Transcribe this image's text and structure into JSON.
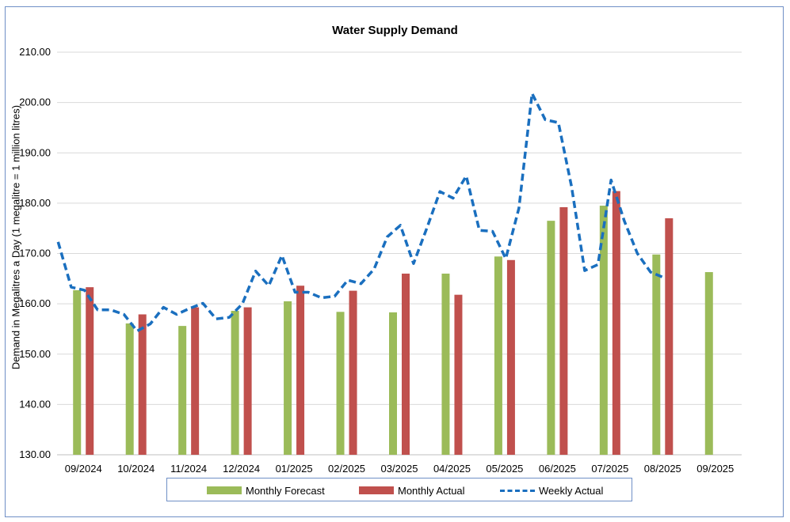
{
  "chart_data": {
    "type": "bar",
    "title": "Water Supply Demand",
    "ylabel": "Demand in Megalitres a Day (1 megalitre = 1 million litres)",
    "xlabel": "",
    "ylim": [
      130,
      210
    ],
    "yticks": [
      130,
      140,
      150,
      160,
      170,
      180,
      190,
      200,
      210
    ],
    "ytick_labels": [
      "130.00",
      "140.00",
      "150.00",
      "160.00",
      "170.00",
      "180.00",
      "190.00",
      "200.00",
      "210.00"
    ],
    "categories": [
      "09/2024",
      "10/2024",
      "11/2024",
      "12/2024",
      "01/2025",
      "02/2025",
      "03/2025",
      "04/2025",
      "05/2025",
      "06/2025",
      "07/2025",
      "08/2025",
      "09/2025"
    ],
    "series": [
      {
        "name": "Monthly Forecast",
        "type": "bar",
        "color": "#9bbb59",
        "values": [
          162.7,
          156.1,
          155.6,
          158.6,
          160.5,
          158.4,
          158.3,
          166.0,
          169.4,
          176.5,
          179.5,
          169.8,
          166.3
        ]
      },
      {
        "name": "Monthly Actual",
        "type": "bar",
        "color": "#c0504d",
        "values": [
          163.3,
          157.9,
          159.3,
          159.3,
          163.6,
          162.6,
          166.0,
          161.8,
          168.7,
          179.2,
          182.4,
          177.0,
          null
        ]
      },
      {
        "name": "Weekly Actual",
        "type": "line",
        "style": "dashed",
        "color": "#1a6fbf",
        "x": [
          0.0,
          0.25,
          0.5,
          0.75,
          1.0,
          1.25,
          1.5,
          1.75,
          2.0,
          2.25,
          2.5,
          2.75,
          3.0,
          3.25,
          3.5,
          3.75,
          4.0,
          4.25,
          4.5,
          4.75,
          5.0,
          5.25,
          5.5,
          5.75,
          6.0,
          6.25,
          6.5,
          6.75,
          7.0,
          7.25,
          7.5,
          7.75,
          8.0,
          8.25,
          8.5,
          8.75,
          9.0,
          9.25,
          9.5,
          9.75,
          10.0,
          10.25,
          10.5,
          10.75,
          11.0,
          11.25,
          11.5,
          11.75,
          12.0,
          12.25
        ],
        "values": [
          172.3,
          163.3,
          162.7,
          158.8,
          158.8,
          157.9,
          154.6,
          156.0,
          159.3,
          157.9,
          159.1,
          160.1,
          157.0,
          157.3,
          160.0,
          166.5,
          163.6,
          169.6,
          162.3,
          162.3,
          161.2,
          161.5,
          164.7,
          164.0,
          166.9,
          173.3,
          175.6,
          168.0,
          175.0,
          182.3,
          181.0,
          185.4,
          174.6,
          174.4,
          169.0,
          179.0,
          201.8,
          196.6,
          196.0,
          183.3,
          166.6,
          167.8,
          184.6,
          176.5,
          170.0,
          166.3,
          165.2,
          null,
          null,
          null
        ]
      }
    ],
    "legend_position": "bottom",
    "grid": true
  }
}
